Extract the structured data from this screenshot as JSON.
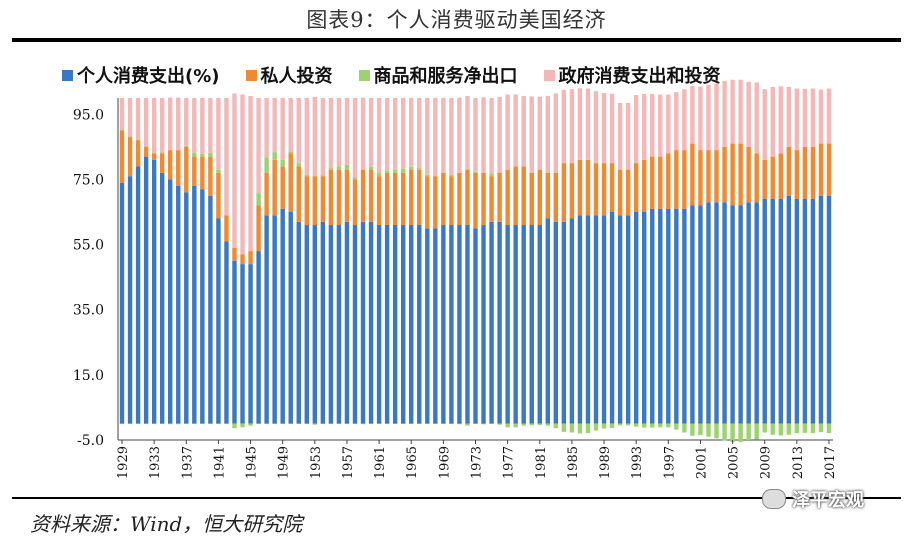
{
  "title": "图表9：个人消费驱动美国经济",
  "source": "资料来源：Wind，恒大研究院",
  "watermark": "泽平宏观",
  "colors": {
    "consumption": "#3b78c3",
    "investment": "#ef8a34",
    "net_exports": "#9dd36f",
    "government": "#f3b7b7"
  },
  "chart_data": {
    "type": "bar",
    "stacked": true,
    "ylim": [
      -5,
      100
    ],
    "yticks": [
      "95.0",
      "75.0",
      "55.0",
      "35.0",
      "15.0",
      "-5.0"
    ],
    "xticks": [
      "1929",
      "1933",
      "1937",
      "1941",
      "1945",
      "1949",
      "1953",
      "1957",
      "1961",
      "1965",
      "1969",
      "1973",
      "1977",
      "1981",
      "1985",
      "1989",
      "1993",
      "1997",
      "2001",
      "2005",
      "2009",
      "2013",
      "2017"
    ],
    "legend_position": "top",
    "categories": [
      "1929",
      "1930",
      "1931",
      "1932",
      "1933",
      "1934",
      "1935",
      "1936",
      "1937",
      "1938",
      "1939",
      "1940",
      "1941",
      "1942",
      "1943",
      "1944",
      "1945",
      "1946",
      "1947",
      "1948",
      "1949",
      "1950",
      "1951",
      "1952",
      "1953",
      "1954",
      "1955",
      "1956",
      "1957",
      "1958",
      "1959",
      "1960",
      "1961",
      "1962",
      "1963",
      "1964",
      "1965",
      "1966",
      "1967",
      "1968",
      "1969",
      "1970",
      "1971",
      "1972",
      "1973",
      "1974",
      "1975",
      "1976",
      "1977",
      "1978",
      "1979",
      "1980",
      "1981",
      "1982",
      "1983",
      "1984",
      "1985",
      "1986",
      "1987",
      "1988",
      "1989",
      "1990",
      "1991",
      "1992",
      "1993",
      "1994",
      "1995",
      "1996",
      "1997",
      "1998",
      "1999",
      "2000",
      "2001",
      "2002",
      "2003",
      "2004",
      "2005",
      "2006",
      "2007",
      "2008",
      "2009",
      "2010",
      "2011",
      "2012",
      "2013",
      "2014",
      "2015",
      "2016",
      "2017"
    ],
    "series": [
      {
        "name": "个人消费支出(%)",
        "values": [
          74,
          76,
          79,
          82,
          81,
          77,
          75,
          73,
          71,
          73,
          72,
          70,
          63,
          56,
          50,
          49,
          49,
          53,
          64,
          64,
          66,
          65,
          62,
          61,
          61,
          62,
          61,
          61,
          62,
          61,
          62,
          62,
          61,
          61,
          61,
          61,
          61,
          61,
          60,
          60,
          61,
          61,
          61,
          61,
          60,
          61,
          62,
          62,
          61,
          61,
          61,
          61,
          61,
          63,
          62,
          62,
          63,
          64,
          64,
          64,
          64,
          65,
          64,
          64,
          65,
          65,
          66,
          66,
          66,
          66,
          66,
          67,
          67,
          68,
          68,
          68,
          67,
          67,
          68,
          68,
          69,
          69,
          69,
          70,
          69,
          69,
          69,
          70,
          70
        ]
      },
      {
        "name": "私人投资",
        "values": [
          16,
          12,
          8,
          3,
          2,
          6,
          9,
          11,
          14,
          9,
          10,
          12,
          14,
          8,
          4,
          3,
          4,
          14,
          13,
          17,
          13,
          18,
          17,
          15,
          15,
          14,
          17,
          17,
          16,
          14,
          16,
          16,
          15,
          16,
          16,
          16,
          17,
          17,
          16,
          16,
          16,
          15,
          16,
          17,
          17,
          16,
          14,
          15,
          17,
          18,
          18,
          16,
          17,
          14,
          15,
          18,
          17,
          17,
          17,
          16,
          16,
          15,
          14,
          14,
          15,
          16,
          16,
          16,
          17,
          18,
          18,
          19,
          17,
          16,
          16,
          17,
          19,
          19,
          17,
          15,
          12,
          13,
          14,
          15,
          15,
          16,
          16,
          16,
          16
        ]
      },
      {
        "name": "商品和服务净出口",
        "values": [
          0.4,
          0.3,
          0.1,
          0.1,
          0.1,
          0.3,
          -0.1,
          -0.1,
          0.3,
          1.2,
          0.9,
          1.2,
          1.0,
          0.0,
          -1.4,
          -1.1,
          -0.6,
          3.8,
          4.8,
          2.4,
          2.0,
          0.6,
          1.0,
          0.4,
          -0.3,
          0.3,
          0.5,
          1.0,
          1.5,
          0.6,
          -0.1,
          0.9,
          1.2,
          0.8,
          1.0,
          1.3,
          0.9,
          0.5,
          0.4,
          0.0,
          0.0,
          0.4,
          -0.1,
          -0.6,
          0.3,
          -0.2,
          0.9,
          -0.3,
          -1.1,
          -1.1,
          -0.6,
          -0.5,
          -0.4,
          -0.6,
          -1.4,
          -2.5,
          -2.7,
          -3.0,
          -2.9,
          -2.1,
          -1.5,
          -1.3,
          -0.5,
          -0.5,
          -0.9,
          -1.2,
          -1.2,
          -1.1,
          -1.1,
          -1.8,
          -2.7,
          -3.7,
          -3.5,
          -4.0,
          -4.5,
          -5.2,
          -5.6,
          -5.6,
          -5.0,
          -4.8,
          -2.7,
          -3.4,
          -3.6,
          -3.4,
          -2.9,
          -2.8,
          -2.9,
          -2.6,
          -2.9
        ]
      },
      {
        "name": "政府消费支出和投资",
        "values": [
          9.6,
          11.7,
          12.9,
          14.9,
          16.9,
          16.7,
          16.1,
          16.1,
          14.7,
          16.8,
          17.1,
          16.8,
          22.0,
          36.0,
          47.4,
          49.1,
          47.6,
          29.2,
          18.2,
          16.6,
          19.0,
          16.4,
          20.0,
          23.6,
          24.3,
          23.7,
          21.5,
          21.0,
          20.5,
          24.4,
          22.1,
          21.1,
          22.8,
          22.2,
          22.0,
          21.7,
          21.1,
          21.5,
          23.6,
          24.0,
          23.0,
          23.6,
          23.1,
          22.6,
          22.7,
          23.2,
          23.1,
          23.3,
          23.1,
          22.1,
          21.6,
          23.5,
          22.4,
          23.6,
          24.4,
          22.5,
          22.7,
          22.0,
          21.9,
          22.1,
          21.5,
          21.3,
          20.5,
          20.5,
          20.9,
          20.2,
          19.2,
          19.1,
          18.1,
          17.8,
          18.7,
          17.7,
          19.5,
          20.0,
          20.5,
          20.2,
          19.6,
          19.6,
          20.0,
          21.8,
          21.7,
          21.4,
          20.6,
          18.4,
          18.9,
          17.8,
          17.9,
          16.6,
          16.9
        ]
      }
    ]
  }
}
